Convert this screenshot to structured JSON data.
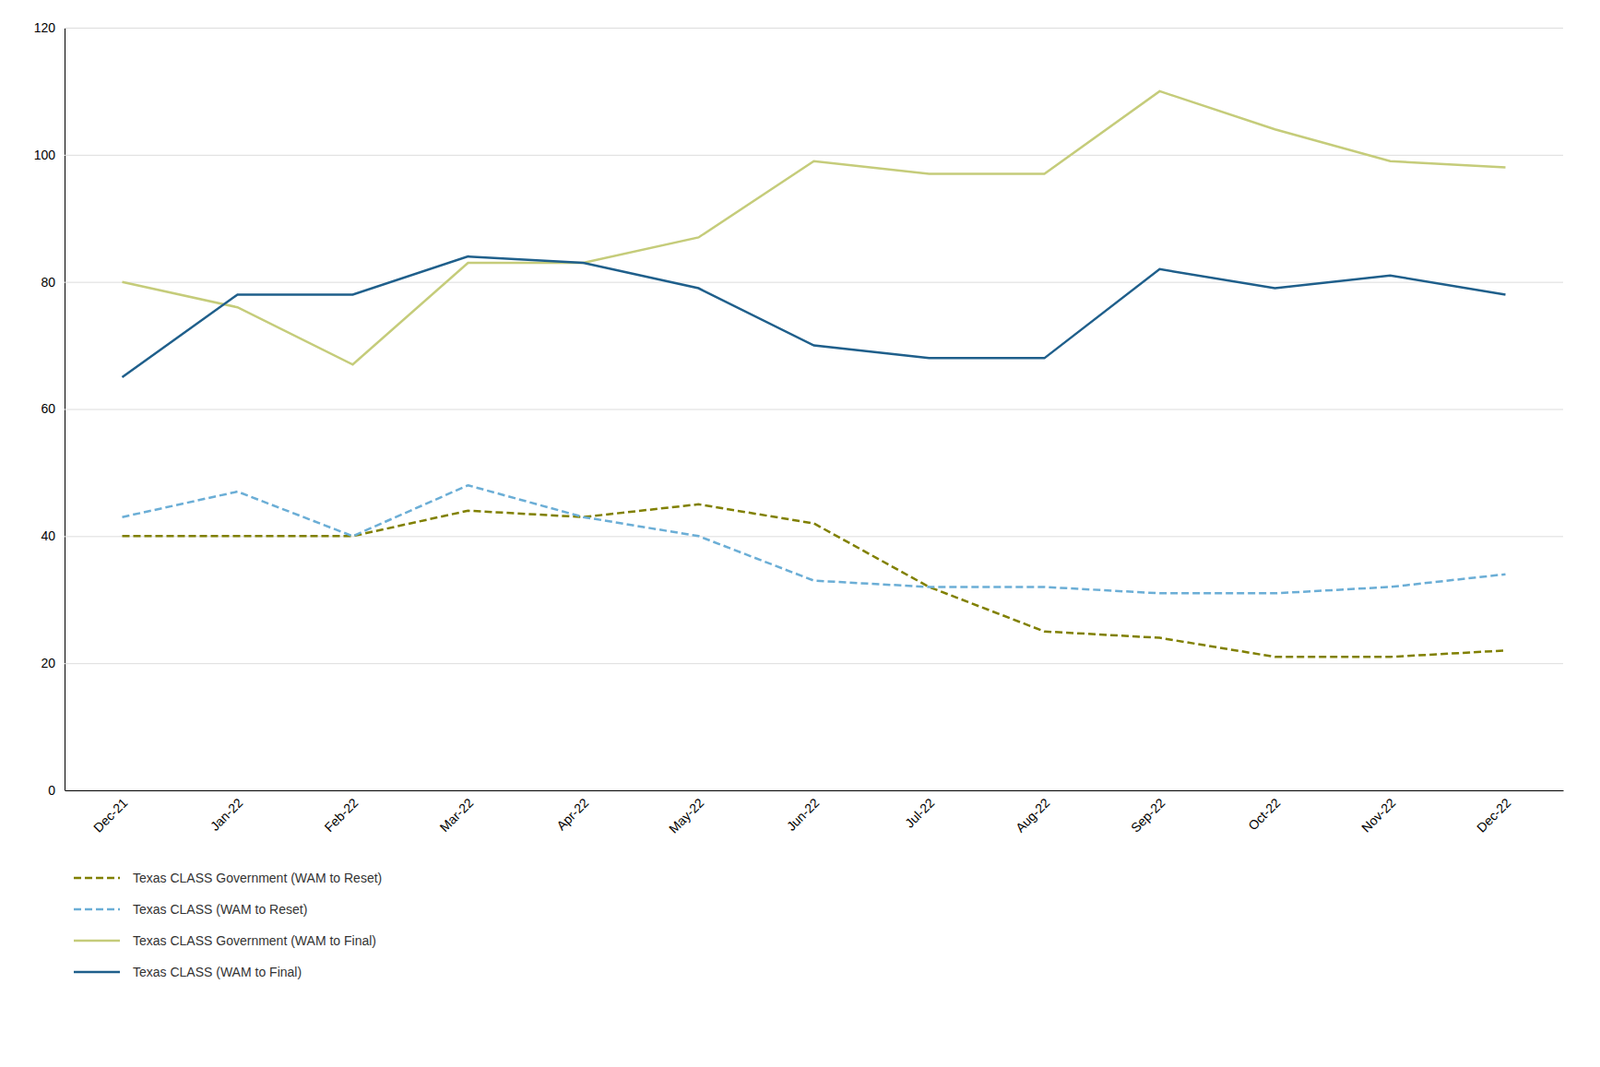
{
  "chart_data": {
    "type": "line",
    "categories": [
      "Dec-21",
      "Jan-22",
      "Feb-22",
      "Mar-22",
      "Apr-22",
      "May-22",
      "Jun-22",
      "Jul-22",
      "Aug-22",
      "Sep-22",
      "Oct-22",
      "Nov-22",
      "Dec-22"
    ],
    "series": [
      {
        "name": "Texas CLASS Government (WAM to Reset)",
        "color": "#808000",
        "line_style": "dashed",
        "values": [
          40,
          40,
          40,
          44,
          43,
          45,
          42,
          32,
          25,
          24,
          21,
          21,
          22
        ]
      },
      {
        "name": "Texas CLASS (WAM to Reset)",
        "color": "#6baed6",
        "line_style": "dashed",
        "values": [
          43,
          47,
          40,
          48,
          43,
          40,
          33,
          32,
          32,
          31,
          31,
          32,
          34
        ]
      },
      {
        "name": "Texas CLASS Government (WAM to Final)",
        "color": "#c5cc7a",
        "line_style": "solid",
        "values": [
          80,
          76,
          67,
          83,
          83,
          87,
          99,
          97,
          97,
          110,
          104,
          99,
          98
        ]
      },
      {
        "name": "Texas CLASS (WAM to Final)",
        "color": "#1f5f8b",
        "line_style": "solid",
        "values": [
          65,
          78,
          78,
          84,
          83,
          79,
          70,
          68,
          68,
          82,
          79,
          81,
          78
        ]
      }
    ],
    "ylim": [
      0,
      120
    ],
    "yticks": [
      0,
      20,
      40,
      60,
      80,
      100,
      120
    ],
    "grid": true,
    "legend": "lower left"
  }
}
